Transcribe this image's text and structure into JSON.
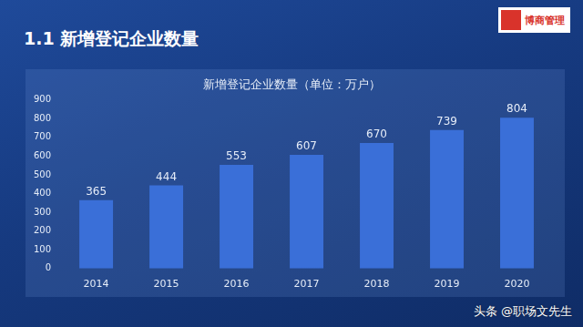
{
  "slide_title": "1.1 新增登记企业数量",
  "logo": "博商管理",
  "watermark": "头条 @职场文先生",
  "chart_data": {
    "type": "bar",
    "title": "新增登记企业数量（单位：万户）",
    "categories": [
      "2014",
      "2015",
      "2016",
      "2017",
      "2018",
      "2019",
      "2020"
    ],
    "values": [
      365,
      444,
      553,
      607,
      670,
      739,
      804
    ],
    "color": "#3a6fd8",
    "ylim": [
      0,
      900
    ],
    "yticks": [
      0,
      100,
      200,
      300,
      400,
      500,
      600,
      700,
      800,
      900
    ],
    "grid": false,
    "data_labels": true
  }
}
